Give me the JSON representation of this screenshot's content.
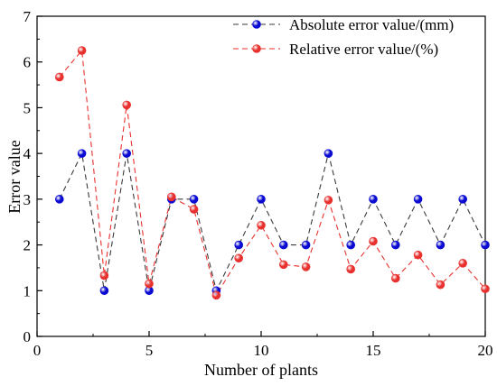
{
  "chart_data": {
    "type": "line",
    "xlabel": "Number of plants",
    "ylabel": "Error value",
    "xlim": [
      0,
      20
    ],
    "ylim": [
      0,
      7
    ],
    "x_ticks": [
      "0",
      "5",
      "10",
      "15",
      "20"
    ],
    "y_ticks": [
      "0",
      "1",
      "2",
      "3",
      "4",
      "5",
      "6",
      "7"
    ],
    "grid": false,
    "legend_position": "top-right",
    "x": [
      1,
      2,
      3,
      4,
      5,
      6,
      7,
      8,
      9,
      10,
      11,
      12,
      13,
      14,
      15,
      16,
      17,
      18,
      19,
      20
    ],
    "series": [
      {
        "name": "Absolute error value/(mm)",
        "color": "#0a0ad2",
        "line_color": "#3a3a3a",
        "values": [
          3,
          4,
          1,
          4,
          1,
          3,
          3,
          1,
          2,
          3,
          2,
          2,
          4,
          2,
          3,
          2,
          3,
          2,
          3,
          2
        ]
      },
      {
        "name": "Relative error value/(%)",
        "color": "#e8312e",
        "line_color": "#e8312e",
        "values": [
          5.67,
          6.25,
          1.33,
          5.06,
          1.15,
          3.05,
          2.78,
          0.9,
          1.71,
          2.43,
          1.57,
          1.52,
          2.98,
          1.47,
          2.08,
          1.27,
          1.78,
          1.13,
          1.6,
          1.04
        ]
      }
    ]
  }
}
